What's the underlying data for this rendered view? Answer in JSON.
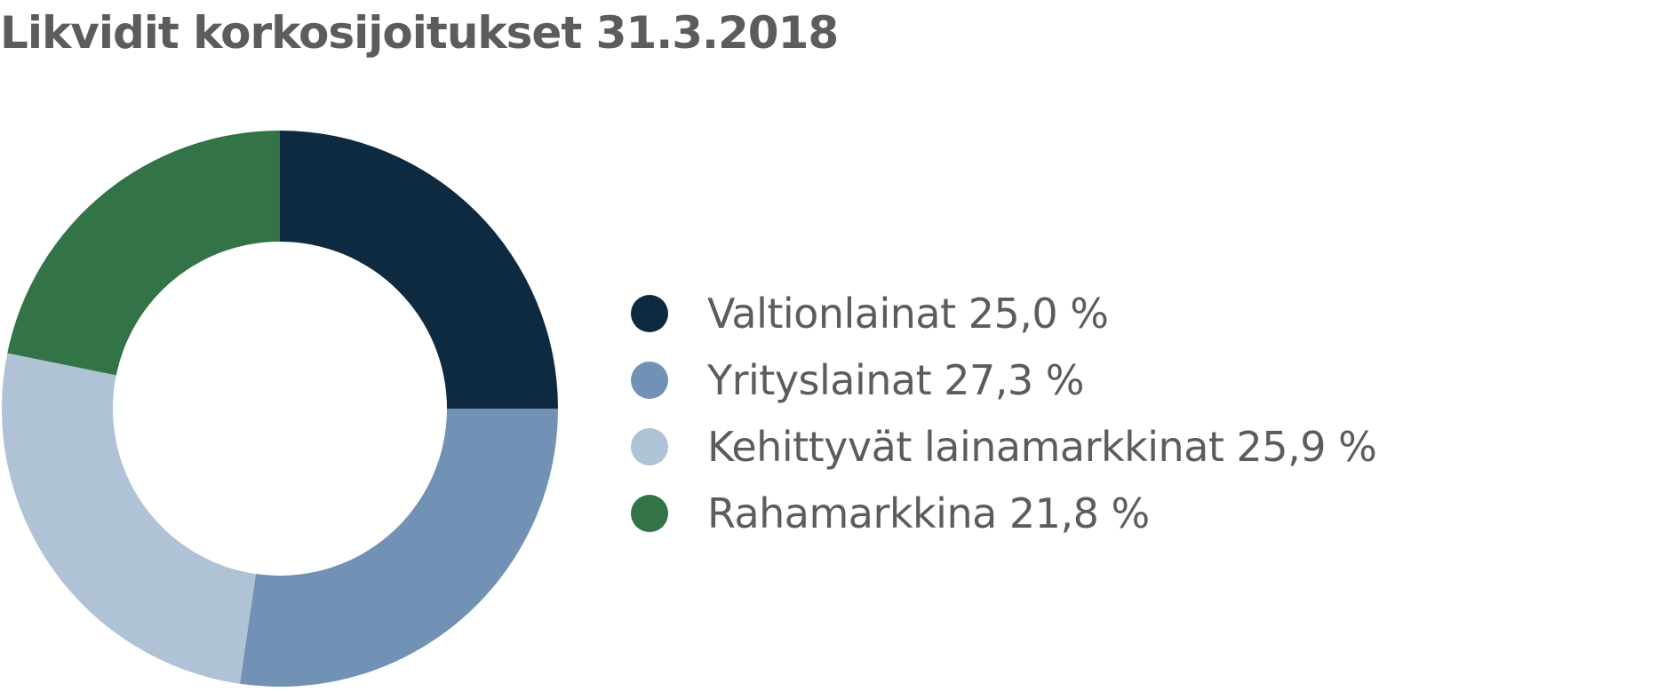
{
  "chart_data": {
    "type": "pie",
    "variant": "donut",
    "title": "Likvidit korkosijoitukset 31.3.2018",
    "series": [
      {
        "labels": [
          "Valtionlainat",
          "Yrityslainat",
          "Kehittyvät lainamarkkinat",
          "Rahamarkkina"
        ],
        "values": [
          25.0,
          27.3,
          25.9,
          21.8
        ],
        "colors": [
          "#0d2a40",
          "#7192b5",
          "#afc2d6",
          "#327347"
        ]
      }
    ],
    "legend": {
      "position": "right",
      "items": [
        {
          "label": "Valtionlainat 25,0 %",
          "color": "#0d2a40"
        },
        {
          "label": "Yrityslainat 27,3 %",
          "color": "#7192b5"
        },
        {
          "label": "Kehittyvät lainamarkkinat 25,9 %",
          "color": "#afc2d6"
        },
        {
          "label": "Rahamarkkina 21,8 %",
          "color": "#327347"
        }
      ]
    },
    "start_angle": "12 o'clock",
    "direction": "clockwise"
  }
}
